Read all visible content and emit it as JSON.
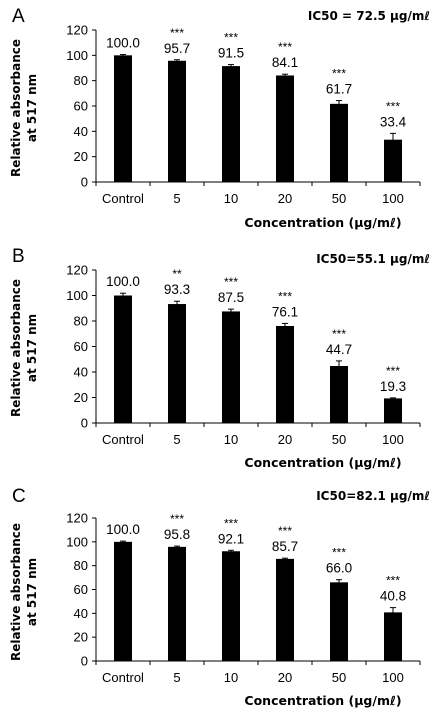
{
  "chart_data": [
    {
      "type": "bar",
      "panel": "A",
      "annotation": "IC50 = 72.5 μg/mℓ",
      "categories": [
        "Control",
        "5",
        "10",
        "20",
        "50",
        "100"
      ],
      "values": [
        100.0,
        95.7,
        91.5,
        84.1,
        61.7,
        33.4
      ],
      "value_labels": [
        "100.0",
        "95.7",
        "91.5",
        "84.1",
        "61.7",
        "33.4"
      ],
      "errors": [
        0.6,
        0.8,
        1.2,
        1.0,
        2.6,
        5.0
      ],
      "significance": [
        "",
        "***",
        "***",
        "***",
        "***",
        "***"
      ],
      "xlabel": "Concentration (μg/mℓ)",
      "ylabel": "Relative absorbance at 517 nm",
      "ylim": [
        0,
        120
      ],
      "yticks": [
        0,
        20,
        40,
        60,
        80,
        100,
        120
      ],
      "bar_color": "#000000",
      "grid": false
    },
    {
      "type": "bar",
      "panel": "B",
      "annotation": "IC50=55.1 μg/mℓ",
      "categories": [
        "Control",
        "5",
        "10",
        "20",
        "50",
        "100"
      ],
      "values": [
        100.0,
        93.3,
        87.5,
        76.1,
        44.7,
        19.3
      ],
      "value_labels": [
        "100.0",
        "93.3",
        "87.5",
        "76.1",
        "44.7",
        "19.3"
      ],
      "errors": [
        1.8,
        2.2,
        1.8,
        2.0,
        4.0,
        0.4
      ],
      "significance": [
        "",
        "**",
        "***",
        "***",
        "***",
        "***"
      ],
      "xlabel": "Concentration (μg/mℓ)",
      "ylabel": "Relative absorbance at 517 nm",
      "ylim": [
        0,
        120
      ],
      "yticks": [
        0,
        20,
        40,
        60,
        80,
        100,
        120
      ],
      "bar_color": "#000000",
      "grid": false
    },
    {
      "type": "bar",
      "panel": "C",
      "annotation": "IC50=82.1 μg/mℓ",
      "categories": [
        "Control",
        "5",
        "10",
        "20",
        "50",
        "100"
      ],
      "values": [
        100.0,
        95.8,
        92.1,
        85.7,
        66.0,
        40.8
      ],
      "value_labels": [
        "100.0",
        "95.8",
        "92.1",
        "85.7",
        "66.0",
        "40.8"
      ],
      "errors": [
        0.6,
        0.6,
        0.8,
        0.6,
        2.2,
        4.0
      ],
      "significance": [
        "",
        "***",
        "***",
        "***",
        "***",
        "***"
      ],
      "xlabel": "Concentration (μg/mℓ)",
      "ylabel": "Relative absorbance at 517 nm",
      "ylim": [
        0,
        120
      ],
      "yticks": [
        0,
        20,
        40,
        60,
        80,
        100,
        120
      ],
      "bar_color": "#000000",
      "grid": false
    }
  ]
}
